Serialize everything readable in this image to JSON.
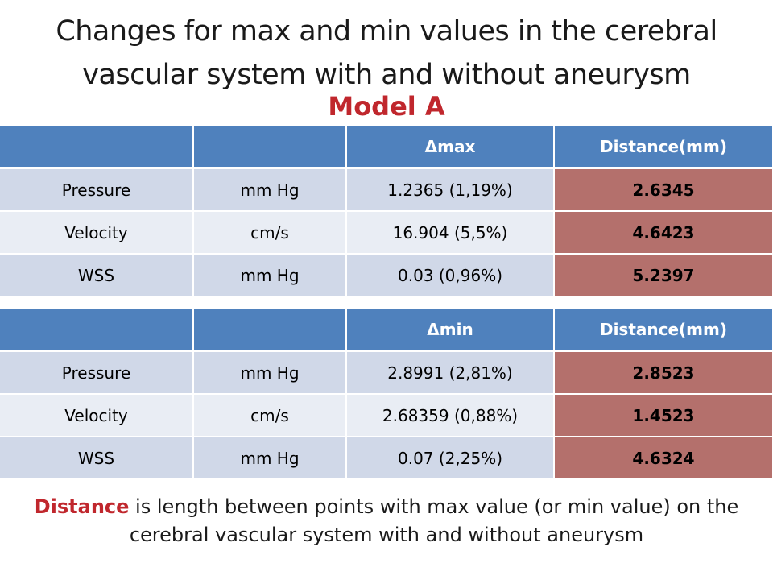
{
  "title": {
    "line1": "Changes for max and min values in the cerebral",
    "line2": "vascular system with and without aneurysm"
  },
  "subtitle": "Model A",
  "table_max": {
    "headers": [
      "",
      "",
      "Δmax",
      "Distance(mm)"
    ],
    "rows": [
      [
        "Pressure",
        "mm Hg",
        "1.2365 (1,19%)",
        "2.6345"
      ],
      [
        "Velocity",
        "cm/s",
        "16.904 (5,5%)",
        "4.6423"
      ],
      [
        "WSS",
        "mm Hg",
        "0.03 (0,96%)",
        "5.2397"
      ]
    ]
  },
  "table_min": {
    "headers": [
      "",
      "",
      "Δmin",
      "Distance(mm)"
    ],
    "rows": [
      [
        "Pressure",
        "mm Hg",
        "2.8991 (2,81%)",
        "2.8523"
      ],
      [
        "Velocity",
        "cm/s",
        "2.68359 (0,88%)",
        "1.4523"
      ],
      [
        "WSS",
        "mm Hg",
        "0.07 (2,25%)",
        "4.6324"
      ]
    ]
  },
  "note": {
    "highlight": "Distance",
    "text": " is length between points with max value (or min value) on the cerebral vascular system with and without aneurysm"
  },
  "colors": {
    "header": "#4f81bd",
    "row_odd": "#d0d8e8",
    "row_even": "#e9edf4",
    "distance_cell": "#b4706c",
    "accent_red": "#c0272d"
  }
}
